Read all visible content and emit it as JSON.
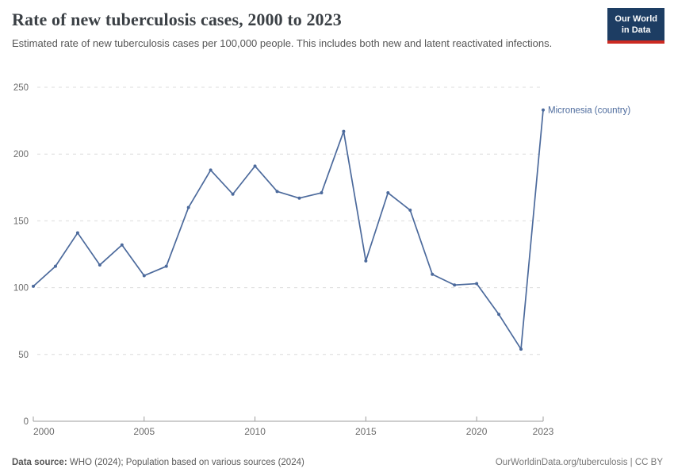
{
  "header": {
    "title": "Rate of new tuberculosis cases, 2000 to 2023",
    "subtitle": "Estimated rate of new tuberculosis cases per 100,000 people. This includes both new and latent reactivated infections."
  },
  "logo": {
    "line1": "Our World",
    "line2": "in Data",
    "bg_color": "#1d3d63",
    "accent_color": "#cc2a22"
  },
  "chart_data": {
    "type": "line",
    "title": "Rate of new tuberculosis cases, 2000 to 2023",
    "xlabel": "",
    "ylabel": "",
    "xlim": [
      2000,
      2023
    ],
    "ylim": [
      0,
      250
    ],
    "x_ticks": [
      2000,
      2005,
      2010,
      2015,
      2020,
      2023
    ],
    "y_ticks": [
      0,
      50,
      100,
      150,
      200,
      250
    ],
    "grid": "horizontal-dashed",
    "legend_position": "end-of-line",
    "x": [
      2000,
      2001,
      2002,
      2003,
      2004,
      2005,
      2006,
      2007,
      2008,
      2009,
      2010,
      2011,
      2012,
      2013,
      2014,
      2015,
      2016,
      2017,
      2018,
      2019,
      2020,
      2021,
      2022,
      2023
    ],
    "series": [
      {
        "name": "Micronesia (country)",
        "color": "#4C6A9C",
        "values": [
          101,
          116,
          141,
          117,
          132,
          109,
          116,
          160,
          188,
          170,
          191,
          172,
          167,
          171,
          217,
          120,
          171,
          158,
          110,
          102,
          103,
          80,
          54,
          233
        ]
      }
    ]
  },
  "colors": {
    "grid": "#dcdcdc",
    "axis": "#9e9e9e",
    "tick_text": "#6b6b6b",
    "title": "#3b4045",
    "subtitle": "#565656"
  },
  "footer": {
    "source_label": "Data source:",
    "source_text": " WHO (2024); Population based on various sources (2024)",
    "right_text": "OurWorldinData.org/tuberculosis | CC BY"
  }
}
